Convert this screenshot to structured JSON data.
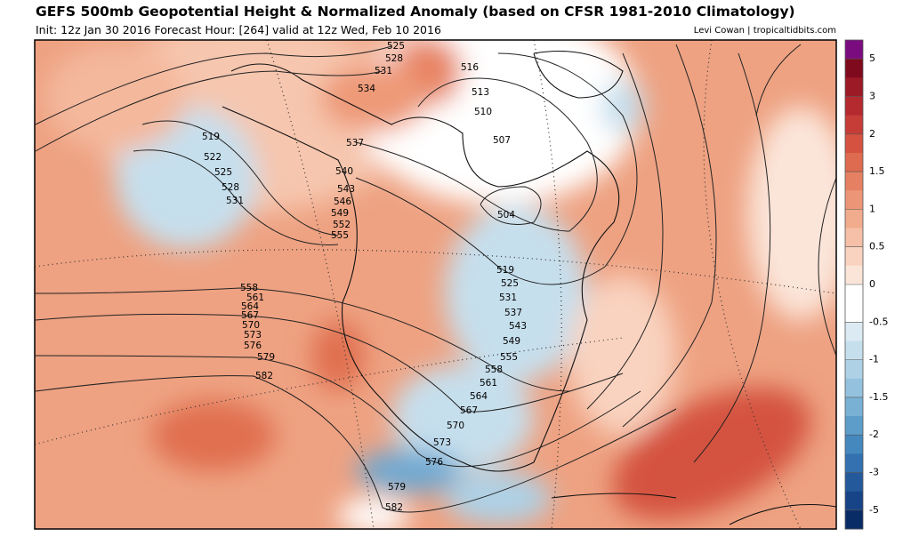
{
  "header": {
    "title": "GEFS 500mb Geopotential Height & Normalized Anomaly (based on CFSR 1981-2010 Climatology)",
    "init": "Init: 12z Jan 30 2016   Forecast Hour: [264]   valid at 12z Wed, Feb 10 2016",
    "credit": "Levi Cowan | tropicaltidbits.com"
  },
  "contour_labels": [
    525,
    528,
    531,
    534,
    537,
    540,
    543,
    546,
    549,
    552,
    555,
    516,
    513,
    510,
    507,
    504,
    519,
    522,
    525,
    528,
    531,
    558,
    561,
    564,
    567,
    570,
    573,
    576,
    579,
    582,
    519,
    525,
    531,
    537,
    543,
    549,
    555,
    558,
    561,
    564,
    567,
    570,
    573,
    576,
    579,
    582
  ],
  "colorbar": {
    "ticks": [
      5,
      3,
      2,
      1.5,
      1,
      0.5,
      0,
      -0.5,
      -1,
      -1.5,
      -2,
      -3,
      -5
    ],
    "colors": [
      "#7b0c7f",
      "#7f0a1e",
      "#9c1a25",
      "#b52a2f",
      "#c63d38",
      "#d4523f",
      "#de6a50",
      "#e58062",
      "#ec9677",
      "#f1ab8d",
      "#f5c0a7",
      "#f9d3c0",
      "#fbe5d9",
      "#ffffff",
      "#ffffff",
      "#dcebf3",
      "#c6dfed",
      "#aed1e6",
      "#94c2de",
      "#79b1d5",
      "#5c9dca",
      "#4488be",
      "#3371b0",
      "#245a9c",
      "#164486",
      "#0a2c66"
    ]
  }
}
